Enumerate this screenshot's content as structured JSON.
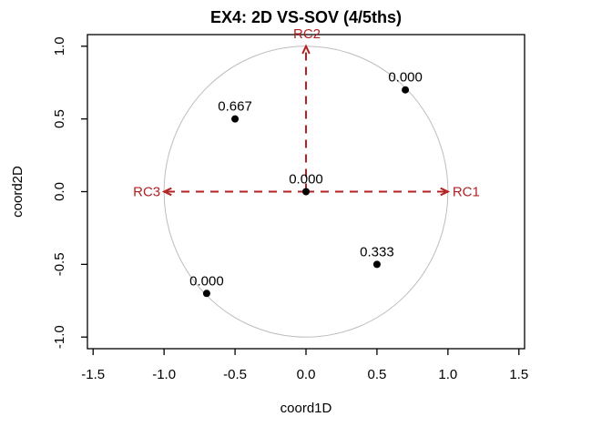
{
  "chart_data": {
    "type": "scatter",
    "title": "EX4: 2D VS-SOV (4/5ths)",
    "xlabel": "coord1D",
    "ylabel": "coord2D",
    "xlim": [
      -1.54,
      1.54
    ],
    "ylim": [
      -1.08,
      1.08
    ],
    "xtick_values": [
      -1.5,
      -1.0,
      -0.5,
      0.0,
      0.5,
      1.0,
      1.5
    ],
    "xtick_labels": [
      "-1.5",
      "-1.0",
      "-0.5",
      "0.0",
      "0.5",
      "1.0",
      "1.5"
    ],
    "ytick_values": [
      -1.0,
      -0.5,
      0.0,
      0.5,
      1.0
    ],
    "ytick_labels": [
      "-1.0",
      "-0.5",
      "0.0",
      "0.5",
      "1.0"
    ],
    "grid": false,
    "legend": null,
    "unit_circle": true,
    "arrows_dashed": true,
    "points": [
      {
        "x": 0.7,
        "y": 0.7,
        "label": "0.000"
      },
      {
        "x": -0.5,
        "y": 0.5,
        "label": "0.667"
      },
      {
        "x": 0.0,
        "y": 0.0,
        "label": "0.000"
      },
      {
        "x": 0.5,
        "y": -0.5,
        "label": "0.333"
      },
      {
        "x": -0.7,
        "y": -0.7,
        "label": "0.000"
      }
    ],
    "arrows": [
      {
        "x": 1.0,
        "y": 0.0,
        "label": "RC1",
        "label_pos": "right"
      },
      {
        "x": 0.0,
        "y": 1.0,
        "label": "RC2",
        "label_pos": "top"
      },
      {
        "x": -1.0,
        "y": 0.0,
        "label": "RC3",
        "label_pos": "left"
      }
    ],
    "colors": {
      "arrow": "#B22222",
      "point": "#000000",
      "circle": "#BDBDBD",
      "axis": "#000000",
      "background": "#FFFFFF"
    }
  }
}
